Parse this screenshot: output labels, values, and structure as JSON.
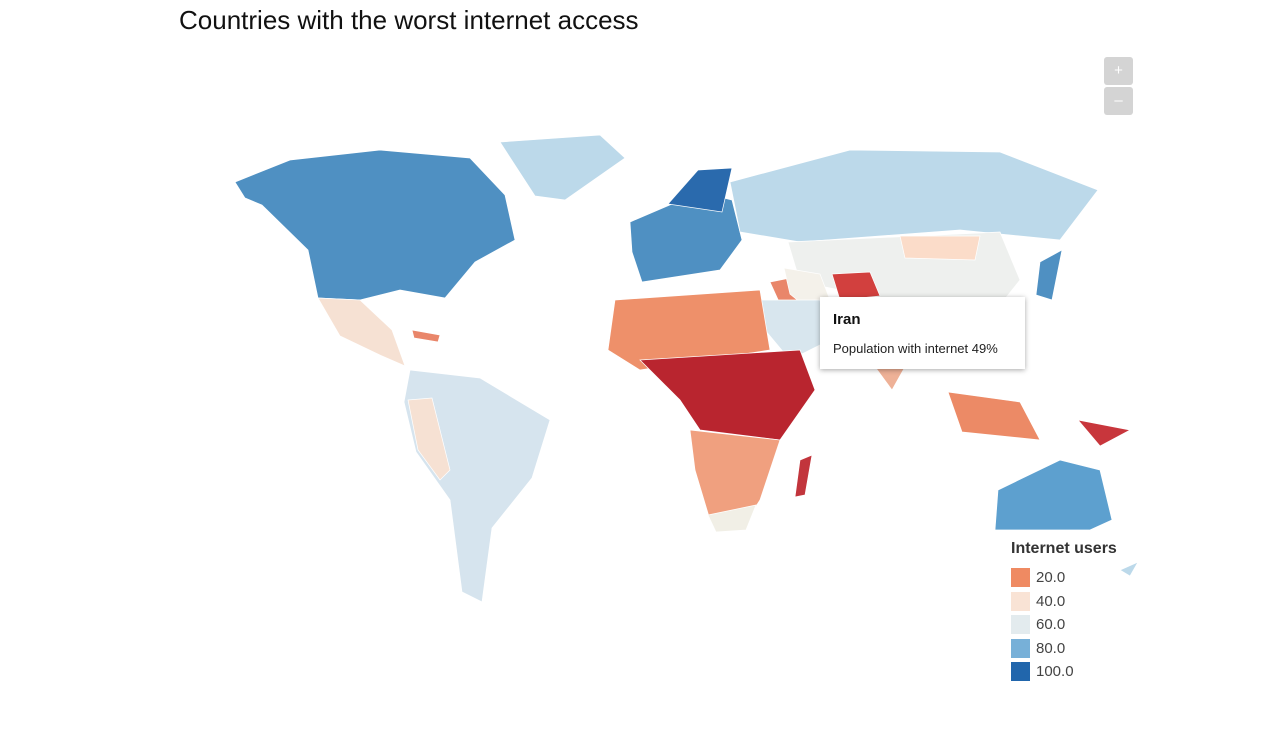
{
  "title": "Countries with the worst internet access",
  "zoom": {
    "in": "+",
    "out": "–"
  },
  "tooltip": {
    "title": "Iran",
    "text": "Population with internet 49%"
  },
  "legend": {
    "title": "Internet users",
    "items": [
      {
        "label": "20.0",
        "color": "#ef8a62"
      },
      {
        "label": "40.0",
        "color": "#f9e3d5"
      },
      {
        "label": "60.0",
        "color": "#e3ebee"
      },
      {
        "label": "80.0",
        "color": "#77b0d8"
      },
      {
        "label": "100.0",
        "color": "#2166ac"
      }
    ]
  }
}
